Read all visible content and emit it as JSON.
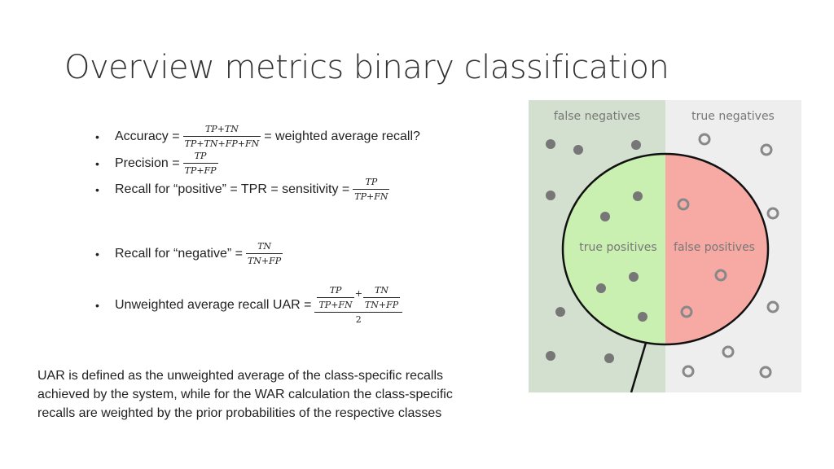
{
  "title": "Overview metrics binary classification",
  "bullets": {
    "accuracy": {
      "label": "Accuracy =",
      "num": "TP+TN",
      "den": "TP+TN+FP+FN",
      "suffix": "= weighted average recall?"
    },
    "precision": {
      "label": "Precision =",
      "num": "TP",
      "den": "TP+FP"
    },
    "recall_pos": {
      "label": "Recall for “positive” = TPR = sensitivity =",
      "num": "TP",
      "den": "TP+FN"
    },
    "recall_neg": {
      "label": "Recall for “negative” =",
      "num": "TN",
      "den": "TN+FP"
    },
    "uar": {
      "label": "Unweighted average recall UAR =",
      "frac1_num": "TP",
      "frac1_den": "TP+FN",
      "plus": "+",
      "frac2_num": "TN",
      "frac2_den": "TN+FP",
      "divisor": "2"
    }
  },
  "note": "UAR is defined as the unweighted average of the class-specific recalls achieved by the system, while for the WAR calculation the class-specific recalls are weighted by the prior probabilities of the respective classes",
  "figure": {
    "labels": {
      "false_negatives": "false negatives",
      "true_negatives": "true negatives",
      "true_positives": "true positives",
      "false_positives": "false positives"
    },
    "colors": {
      "left_bg": "#d3dfcf",
      "right_bg": "#eeeeee",
      "tp_fill": "#c9f0b0",
      "fp_fill": "#f7aaa4",
      "dot_filled": "#777777",
      "dot_hollow": "#888888",
      "label_color": "#777777"
    }
  }
}
